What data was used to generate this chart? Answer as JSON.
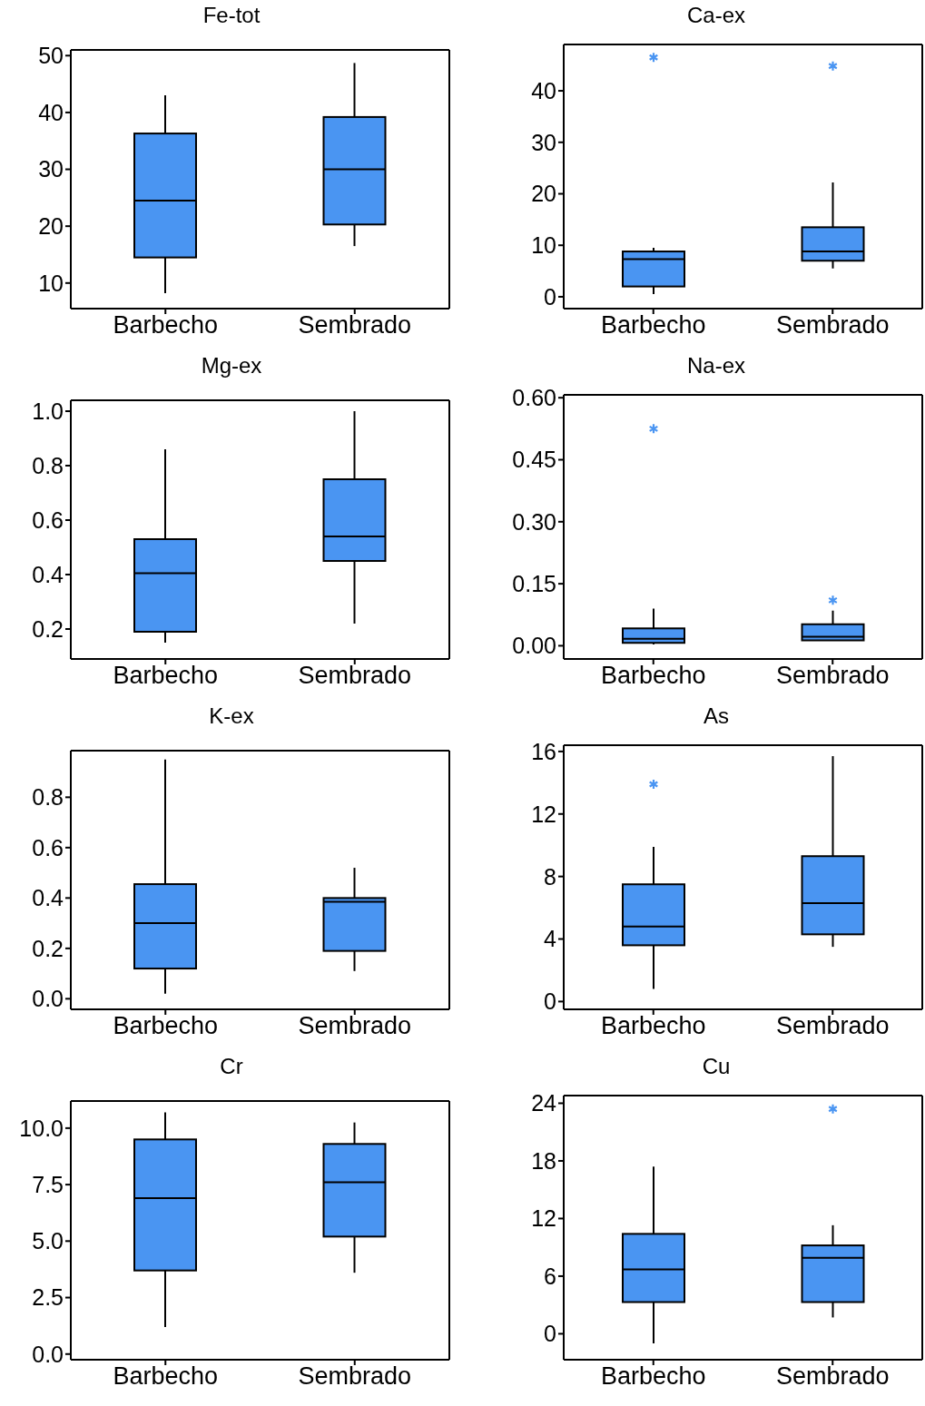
{
  "chart_data": [
    {
      "type": "box",
      "title": "Fe-tot",
      "categories": [
        "Barbecho",
        "Sembrado"
      ],
      "ylim": [
        5.5,
        51
      ],
      "yticks": [
        10,
        20,
        30,
        40,
        50
      ],
      "series": [
        {
          "color": "#4a95f2",
          "boxes": [
            {
              "low": 8.2,
              "q1": 14.5,
              "median": 24.5,
              "q3": 36.3,
              "high": 43
            },
            {
              "low": 16.5,
              "q1": 20.3,
              "median": 30,
              "q3": 39.2,
              "high": 48.7
            }
          ]
        }
      ]
    },
    {
      "type": "box",
      "title": "Ca-ex",
      "categories": [
        "Barbecho",
        "Sembrado"
      ],
      "ylim": [
        -2.3,
        49
      ],
      "yticks": [
        0,
        10,
        20,
        30,
        40
      ],
      "series": [
        {
          "color": "#4a95f2",
          "boxes": [
            {
              "low": 0.5,
              "q1": 2,
              "median": 7.3,
              "q3": 8.8,
              "high": 9.5,
              "outliers": [
                46.5
              ]
            },
            {
              "low": 5.5,
              "q1": 7,
              "median": 8.8,
              "q3": 13.5,
              "high": 22.2,
              "outliers": [
                44.8
              ]
            }
          ]
        }
      ]
    },
    {
      "type": "box",
      "title": "Mg-ex",
      "categories": [
        "Barbecho",
        "Sembrado"
      ],
      "ylim": [
        0.09,
        1.04
      ],
      "yticks": [
        {
          "value": 0.2,
          "label": "0.2"
        },
        {
          "value": 0.4,
          "label": "0.4"
        },
        {
          "value": 0.6,
          "label": "0.6"
        },
        {
          "value": 0.8,
          "label": "0.8"
        },
        {
          "value": 1,
          "label": "1.0"
        }
      ],
      "series": [
        {
          "color": "#4a95f2",
          "boxes": [
            {
              "low": 0.15,
              "q1": 0.19,
              "median": 0.405,
              "q3": 0.53,
              "high": 0.86
            },
            {
              "low": 0.22,
              "q1": 0.45,
              "median": 0.54,
              "q3": 0.75,
              "high": 1.0
            }
          ]
        }
      ]
    },
    {
      "type": "box",
      "title": "Na-ex",
      "categories": [
        "Barbecho",
        "Sembrado"
      ],
      "ylim": [
        -0.032,
        0.607
      ],
      "yticks": [
        {
          "value": 0,
          "label": "0.00"
        },
        {
          "value": 0.15,
          "label": "0.15"
        },
        {
          "value": 0.3,
          "label": "0.30"
        },
        {
          "value": 0.45,
          "label": "0.45"
        },
        {
          "value": 0.6,
          "label": "0.60"
        }
      ],
      "series": [
        {
          "color": "#4a95f2",
          "boxes": [
            {
              "low": 0.003,
              "q1": 0.007,
              "median": 0.017,
              "q3": 0.042,
              "high": 0.09,
              "outliers": [
                0.525
              ]
            },
            {
              "low": 0.012,
              "q1": 0.013,
              "median": 0.022,
              "q3": 0.052,
              "high": 0.085,
              "outliers": [
                0.11
              ]
            }
          ]
        }
      ]
    },
    {
      "type": "box",
      "title": "K-ex",
      "categories": [
        "Barbecho",
        "Sembrado"
      ],
      "ylim": [
        -0.042,
        0.985
      ],
      "yticks": [
        {
          "value": 0,
          "label": "0.0"
        },
        {
          "value": 0.2,
          "label": "0.2"
        },
        {
          "value": 0.4,
          "label": "0.4"
        },
        {
          "value": 0.6,
          "label": "0.6"
        },
        {
          "value": 0.8,
          "label": "0.8"
        }
      ],
      "series": [
        {
          "color": "#4a95f2",
          "boxes": [
            {
              "low": 0.02,
              "q1": 0.12,
              "median": 0.3,
              "q3": 0.455,
              "high": 0.95
            },
            {
              "low": 0.11,
              "q1": 0.19,
              "median": 0.385,
              "q3": 0.4,
              "high": 0.52
            }
          ]
        }
      ]
    },
    {
      "type": "box",
      "title": "As",
      "categories": [
        "Barbecho",
        "Sembrado"
      ],
      "ylim": [
        -0.5,
        16.4
      ],
      "yticks": [
        0,
        4,
        8,
        12,
        16
      ],
      "series": [
        {
          "color": "#4a95f2",
          "boxes": [
            {
              "low": 0.8,
              "q1": 3.6,
              "median": 4.8,
              "q3": 7.5,
              "high": 9.9,
              "outliers": [
                13.9
              ]
            },
            {
              "low": 3.5,
              "q1": 4.3,
              "median": 6.3,
              "q3": 9.3,
              "high": 15.7
            }
          ]
        }
      ]
    },
    {
      "type": "box",
      "title": "Cr",
      "categories": [
        "Barbecho",
        "Sembrado"
      ],
      "ylim": [
        -0.25,
        11.2
      ],
      "yticks": [
        {
          "value": 0,
          "label": "0.0"
        },
        {
          "value": 2.5,
          "label": "2.5"
        },
        {
          "value": 5,
          "label": "5.0"
        },
        {
          "value": 7.5,
          "label": "7.5"
        },
        {
          "value": 10,
          "label": "10.0"
        }
      ],
      "series": [
        {
          "color": "#4a95f2",
          "boxes": [
            {
              "low": 1.2,
              "q1": 3.7,
              "median": 6.9,
              "q3": 9.5,
              "high": 10.7
            },
            {
              "low": 3.6,
              "q1": 5.2,
              "median": 7.6,
              "q3": 9.3,
              "high": 10.25
            }
          ]
        }
      ]
    },
    {
      "type": "box",
      "title": "Cu",
      "categories": [
        "Barbecho",
        "Sembrado"
      ],
      "ylim": [
        -2.7,
        24.8
      ],
      "yticks": [
        0,
        6,
        12,
        18,
        24
      ],
      "series": [
        {
          "color": "#4a95f2",
          "boxes": [
            {
              "low": -1,
              "q1": 3.3,
              "median": 6.7,
              "q3": 10.4,
              "high": 17.4
            },
            {
              "low": 1.7,
              "q1": 3.3,
              "median": 7.9,
              "q3": 9.2,
              "high": 11.3,
              "outliers": [
                23.4
              ]
            }
          ]
        }
      ]
    }
  ]
}
